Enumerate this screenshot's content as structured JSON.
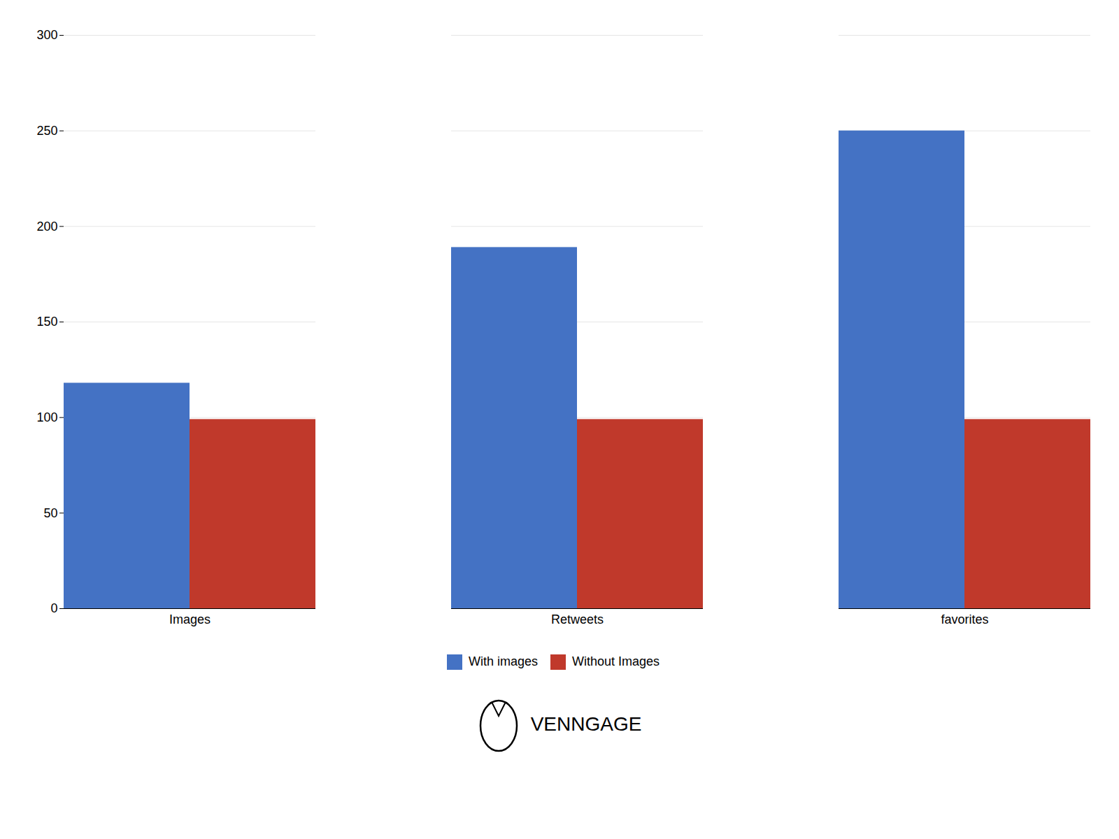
{
  "chart_data": {
    "type": "bar",
    "categories": [
      "Images",
      "Retweets",
      "favorites"
    ],
    "series": [
      {
        "name": "With images",
        "color": "#4472c4",
        "values": [
          118,
          189,
          250
        ]
      },
      {
        "name": "Without Images",
        "color": "#c0392b",
        "values": [
          99,
          99,
          99
        ]
      }
    ],
    "ylim": [
      0,
      300
    ],
    "yticks": [
      0,
      50,
      100,
      150,
      200,
      250,
      300
    ],
    "grid": true,
    "legend": "bottom",
    "annotations": [
      "VENNGAGE"
    ]
  }
}
